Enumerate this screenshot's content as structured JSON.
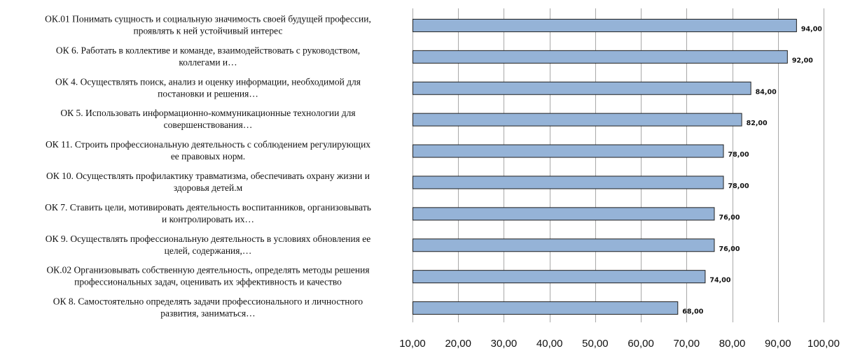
{
  "chart_data": {
    "type": "bar",
    "orientation": "horizontal",
    "categories": [
      "ОК 8. Самостоятельно определять задачи профессионального и личностного развития, заниматься…",
      "ОК.02 Организовывать собственную деятельность, определять методы решения профессиональных задач, оценивать их эффективность и качество",
      "ОК 9. Осуществлять профессиональную деятельность в условиях обновления ее целей, содержания,…",
      "ОК 7. Ставить цели, мотивировать деятельность воспитанников, организовывать и контролировать их…",
      "ОК 10. Осуществлять профилактику травматизма, обеспечивать охрану жизни и здоровья детей.м",
      "ОК 11. Строить профессиональную деятельность с соблюдением регулирующих ее правовых норм.",
      "ОК 5. Использовать информационно-коммуникационные технологии для совершенствования…",
      "ОК 4. Осуществлять поиск, анализ и оценку информации, необходимой для постановки и решения…",
      "ОК 6. Работать в коллективе и команде, взаимодействовать с руководством, коллегами и…",
      "ОК.01 Понимать сущность и социальную значимость своей будущей профессии, проявлять к ней устойчивый интерес"
    ],
    "category_lines": [
      [
        "ОК 8. Самостоятельно определять задачи профессионального и личностного",
        "развития, заниматься…"
      ],
      [
        "ОК.02 Организовывать собственную деятельность, определять методы решения",
        "профессиональных задач, оценивать их эффективность и качество"
      ],
      [
        "ОК 9. Осуществлять профессиональную деятельность в условиях обновления ее",
        "целей, содержания,…"
      ],
      [
        "ОК 7. Ставить цели, мотивировать деятельность воспитанников, организовывать",
        "и контролировать их…"
      ],
      [
        "ОК 10. Осуществлять профилактику травматизма, обеспечивать охрану жизни и",
        "здоровья детей.м"
      ],
      [
        "ОК 11. Строить профессиональную деятельность с соблюдением регулирующих",
        "ее правовых норм."
      ],
      [
        "ОК 5. Использовать информационно-коммуникационные технологии для",
        "совершенствования…"
      ],
      [
        "ОК 4. Осуществлять поиск, анализ и оценку информации, необходимой для",
        "постановки и решения…"
      ],
      [
        "ОК 6. Работать в коллективе и команде, взаимодействовать с руководством,",
        "коллегами и…"
      ],
      [
        "ОК.01 Понимать сущность и социальную значимость своей будущей профессии,",
        "проявлять к ней устойчивый интерес"
      ]
    ],
    "values": [
      68,
      74,
      76,
      76,
      78,
      78,
      82,
      84,
      92,
      94
    ],
    "data_labels": [
      "68,00",
      "74,00",
      "76,00",
      "76,00",
      "78,00",
      "78,00",
      "82,00",
      "84,00",
      "92,00",
      "94,00"
    ],
    "x_ticks": [
      10,
      20,
      30,
      40,
      50,
      60,
      70,
      80,
      90,
      100
    ],
    "x_tick_labels": [
      "10,00",
      "20,00",
      "30,00",
      "40,00",
      "50,00",
      "60,00",
      "70,00",
      "80,00",
      "90,00",
      "100,00"
    ],
    "xlim": [
      10,
      100
    ],
    "grid": true,
    "legend": false,
    "title": "",
    "xlabel": "",
    "ylabel": "",
    "colors": {
      "bar_fill": "#95b3d7",
      "bar_stroke": "#1f1f1f",
      "grid": "#a8a8a8",
      "text": "#111111"
    }
  }
}
